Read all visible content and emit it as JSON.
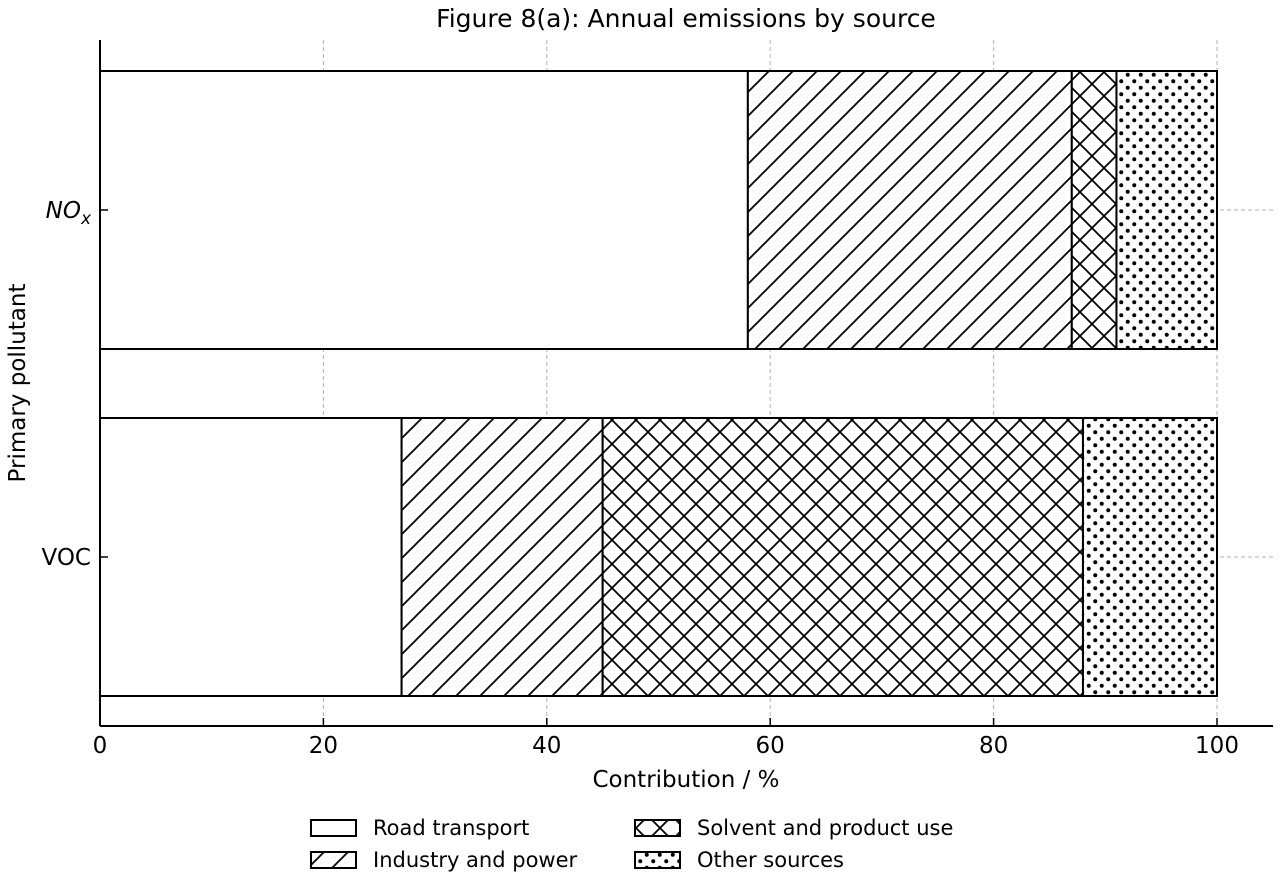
{
  "chart_data": {
    "type": "bar",
    "orientation": "horizontal",
    "stacked": true,
    "title": "Figure 8(a): Annual emissions by source",
    "xlabel": "Contribution / %",
    "ylabel": "Primary pollutant",
    "xlim": [
      0,
      105
    ],
    "xticks": [
      0,
      20,
      40,
      60,
      80,
      100
    ],
    "grid": true,
    "legend_position": "bottom",
    "categories": [
      {
        "base": "NO",
        "sub": "x"
      },
      {
        "base": "VOC",
        "sub": ""
      }
    ],
    "series": [
      {
        "name": "Road transport",
        "pattern": "none",
        "values": [
          58,
          27
        ]
      },
      {
        "name": "Industry and power",
        "pattern": "diagonal",
        "values": [
          29,
          18
        ]
      },
      {
        "name": "Solvent and product use",
        "pattern": "crosshatch",
        "values": [
          4,
          43
        ]
      },
      {
        "name": "Other sources",
        "pattern": "dots",
        "values": [
          9,
          12
        ]
      }
    ],
    "colors": {
      "fill": "#ffffff",
      "stroke": "#000000",
      "grid": "#b0b0b0"
    }
  }
}
